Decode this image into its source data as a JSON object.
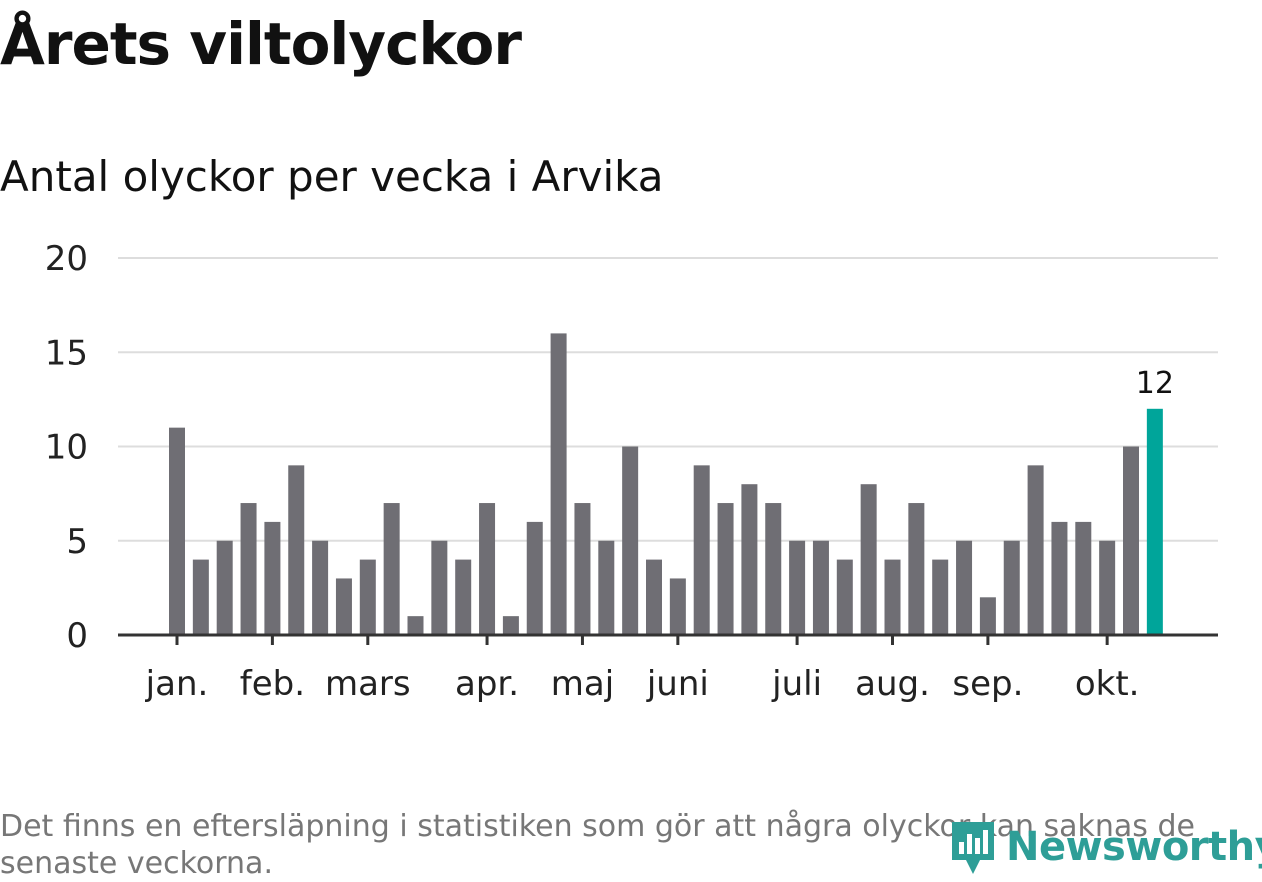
{
  "chart_data": {
    "type": "bar",
    "title": "Årets viltolyckor",
    "subtitle": "Antal olyckor per vecka i Arvika",
    "xlabel": "",
    "ylabel": "",
    "ylim": [
      0,
      20
    ],
    "yticks": [
      0,
      5,
      10,
      15,
      20
    ],
    "grid": true,
    "values": [
      11,
      4,
      5,
      7,
      6,
      9,
      5,
      3,
      4,
      7,
      1,
      5,
      4,
      7,
      1,
      6,
      16,
      7,
      5,
      10,
      4,
      3,
      9,
      7,
      8,
      7,
      5,
      5,
      4,
      8,
      4,
      7,
      4,
      5,
      2,
      5,
      9,
      6,
      6,
      5,
      10,
      12
    ],
    "month_labels": [
      {
        "label": "jan.",
        "week": 0
      },
      {
        "label": "feb.",
        "week": 4
      },
      {
        "label": "mars",
        "week": 8
      },
      {
        "label": "apr.",
        "week": 13
      },
      {
        "label": "maj",
        "week": 17
      },
      {
        "label": "juni",
        "week": 21
      },
      {
        "label": "juli",
        "week": 26
      },
      {
        "label": "aug.",
        "week": 30
      },
      {
        "label": "sep.",
        "week": 34
      },
      {
        "label": "okt.",
        "week": 39
      }
    ],
    "highlight": {
      "week": 41,
      "value": 12,
      "label": "12"
    },
    "colors": {
      "bar": "#6f6e74",
      "highlight": "#00a59a",
      "grid": "#dddddd",
      "axis": "#333333"
    }
  },
  "footnote": "Det finns en eftersläpning i statistiken som gör att några olyckor kan saknas de senaste veckorna.",
  "logo": {
    "text": "Newsworthy",
    "icon": "newsworthy-chart-icon",
    "color": "#2e9e97"
  }
}
